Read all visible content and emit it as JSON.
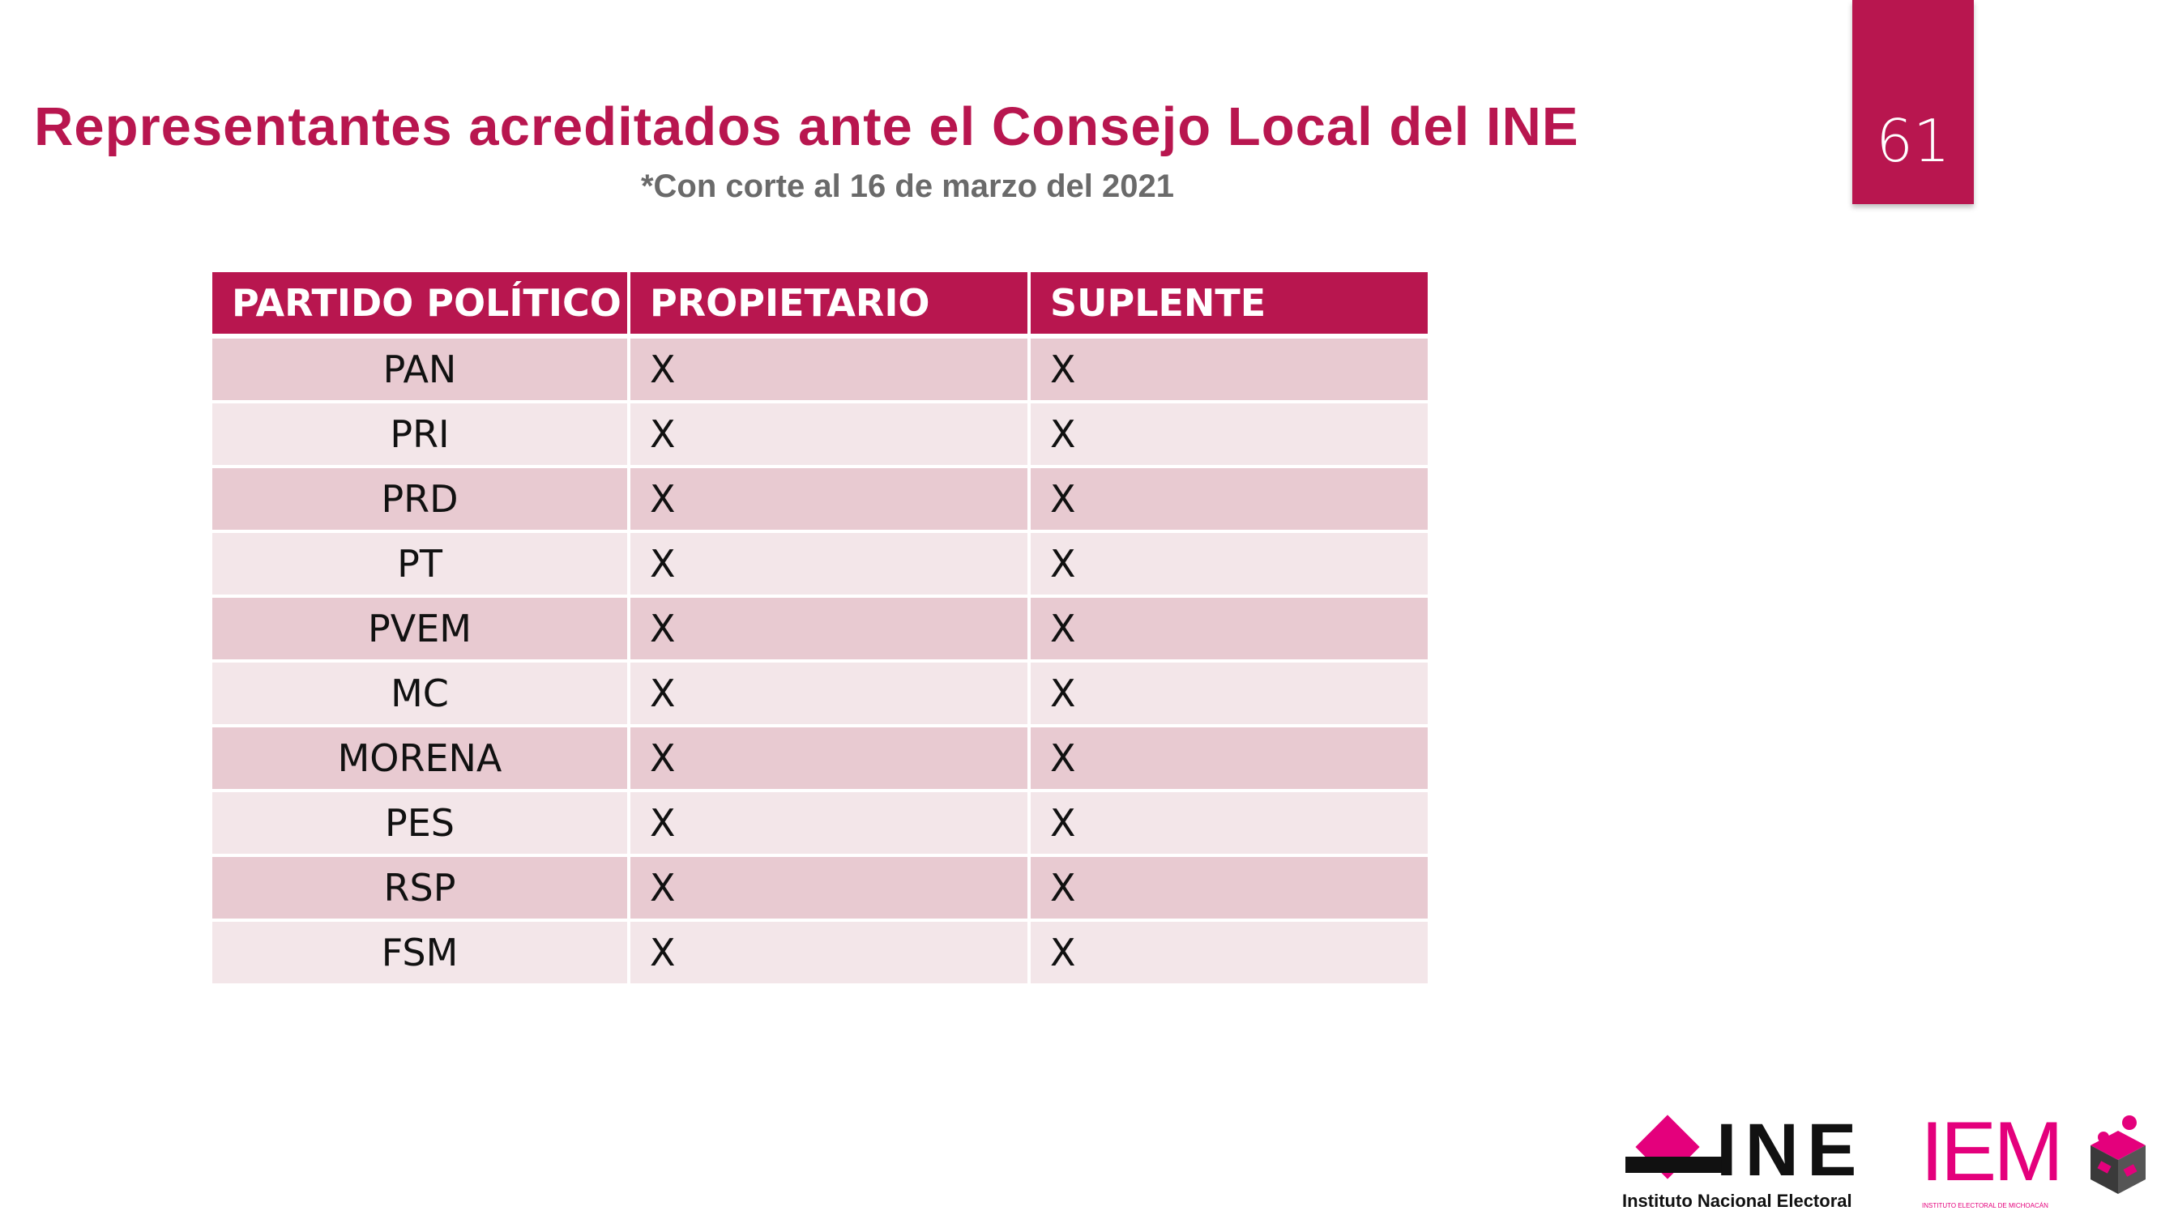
{
  "header": {
    "title": "Representantes acreditados ante el Consejo Local del INE",
    "subtitle": "*Con corte al 16 de marzo del 2021",
    "page_number": "61"
  },
  "table": {
    "headers": [
      "PARTIDO POLÍTICO",
      "PROPIETARIO",
      "SUPLENTE"
    ],
    "rows": [
      {
        "party": "PAN",
        "propietario": "X",
        "suplente": "X"
      },
      {
        "party": "PRI",
        "propietario": "X",
        "suplente": "X"
      },
      {
        "party": "PRD",
        "propietario": "X",
        "suplente": "X"
      },
      {
        "party": "PT",
        "propietario": "X",
        "suplente": "X"
      },
      {
        "party": "PVEM",
        "propietario": "X",
        "suplente": "X"
      },
      {
        "party": "MC",
        "propietario": "X",
        "suplente": "X"
      },
      {
        "party": "MORENA",
        "propietario": "X",
        "suplente": "X"
      },
      {
        "party": "PES",
        "propietario": "X",
        "suplente": "X"
      },
      {
        "party": "RSP",
        "propietario": "X",
        "suplente": "X"
      },
      {
        "party": "FSM",
        "propietario": "X",
        "suplente": "X"
      }
    ]
  },
  "logos": {
    "ine_letters": "INE",
    "ine_caption": "Instituto Nacional Electoral",
    "iem_letters": "IEM",
    "iem_caption": "INSTITUTO ELECTORAL DE MICHOACÁN"
  },
  "colors": {
    "accent": "#b8164f",
    "row_dark": "#e8cad1",
    "row_light": "#f3e6e9",
    "subtitle_gray": "#6a6a6a",
    "logo_pink": "#e4007c"
  }
}
